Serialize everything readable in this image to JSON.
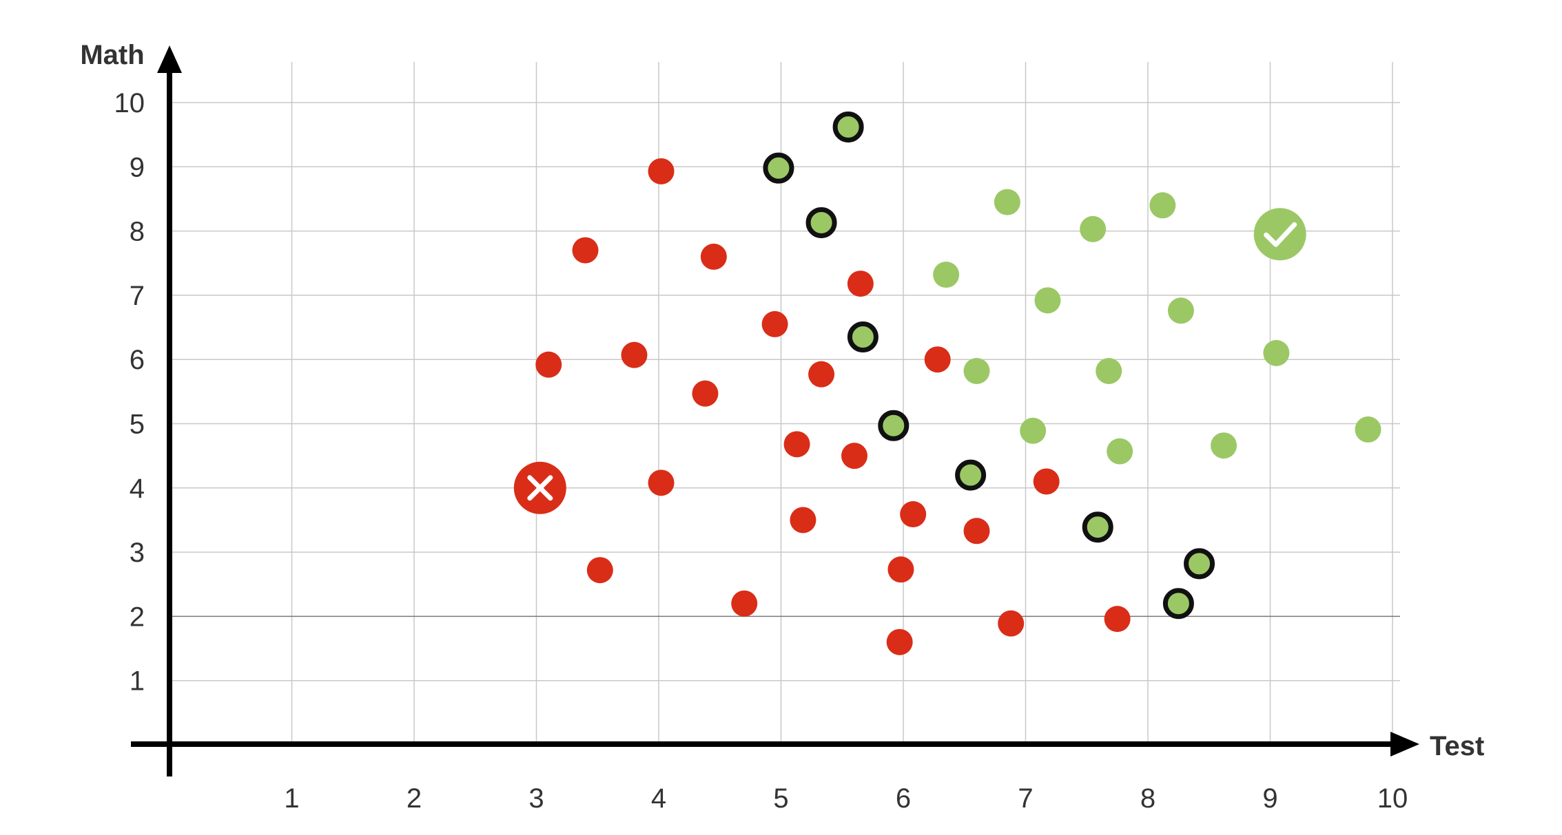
{
  "chart_data": {
    "type": "scatter",
    "xlabel": "Test",
    "ylabel": "Math",
    "x_ticks": [
      1,
      2,
      3,
      4,
      5,
      6,
      7,
      8,
      9,
      10
    ],
    "y_ticks": [
      1,
      2,
      3,
      4,
      5,
      6,
      7,
      8,
      9,
      10
    ],
    "xlim": [
      0,
      10
    ],
    "ylim": [
      0,
      10
    ],
    "grid": true,
    "colors": {
      "red": "#d92d18",
      "green": "#9bc865",
      "outline": "#111111",
      "axis": "#000000",
      "grid": "#c8c8c8"
    },
    "series": [
      {
        "color": "#d92d18",
        "points": [
          [
            4.02,
            8.93
          ],
          [
            3.4,
            7.7
          ],
          [
            4.45,
            7.6
          ],
          [
            5.65,
            7.18
          ],
          [
            4.95,
            6.55
          ],
          [
            3.1,
            5.92
          ],
          [
            3.8,
            6.07
          ],
          [
            6.28,
            6.0
          ],
          [
            5.33,
            5.77
          ],
          [
            4.38,
            5.47
          ],
          [
            5.13,
            4.68
          ],
          [
            5.6,
            4.5
          ],
          [
            4.02,
            4.08
          ],
          [
            7.17,
            4.1
          ],
          [
            6.08,
            3.59
          ],
          [
            5.18,
            3.5
          ],
          [
            6.6,
            3.33
          ],
          [
            3.52,
            2.72
          ],
          [
            5.98,
            2.73
          ],
          [
            4.7,
            2.2
          ],
          [
            6.88,
            1.89
          ],
          [
            7.75,
            1.96
          ],
          [
            5.97,
            1.6
          ]
        ]
      },
      {
        "color": "#9bc865",
        "points": [
          [
            6.85,
            8.45
          ],
          [
            7.55,
            8.03
          ],
          [
            8.12,
            8.4
          ],
          [
            6.35,
            7.32
          ],
          [
            7.18,
            6.92
          ],
          [
            8.27,
            6.76
          ],
          [
            9.05,
            6.1
          ],
          [
            6.6,
            5.82
          ],
          [
            7.68,
            5.82
          ],
          [
            7.06,
            4.89
          ],
          [
            7.77,
            4.57
          ],
          [
            8.62,
            4.66
          ],
          [
            9.8,
            4.91
          ]
        ]
      },
      {
        "color": "#9bc865",
        "outlined": true,
        "points": [
          [
            5.55,
            9.62
          ],
          [
            4.98,
            8.98
          ],
          [
            5.33,
            8.13
          ],
          [
            5.67,
            6.35
          ],
          [
            5.92,
            4.97
          ],
          [
            6.55,
            4.2
          ],
          [
            7.59,
            3.39
          ],
          [
            8.42,
            2.82
          ],
          [
            8.25,
            2.2
          ]
        ]
      }
    ],
    "annotations": [
      {
        "x": 3.03,
        "y": 4.0,
        "marker": "cross",
        "color": "#d92d18"
      },
      {
        "x": 9.08,
        "y": 7.95,
        "marker": "check",
        "color": "#9bc865"
      }
    ]
  }
}
